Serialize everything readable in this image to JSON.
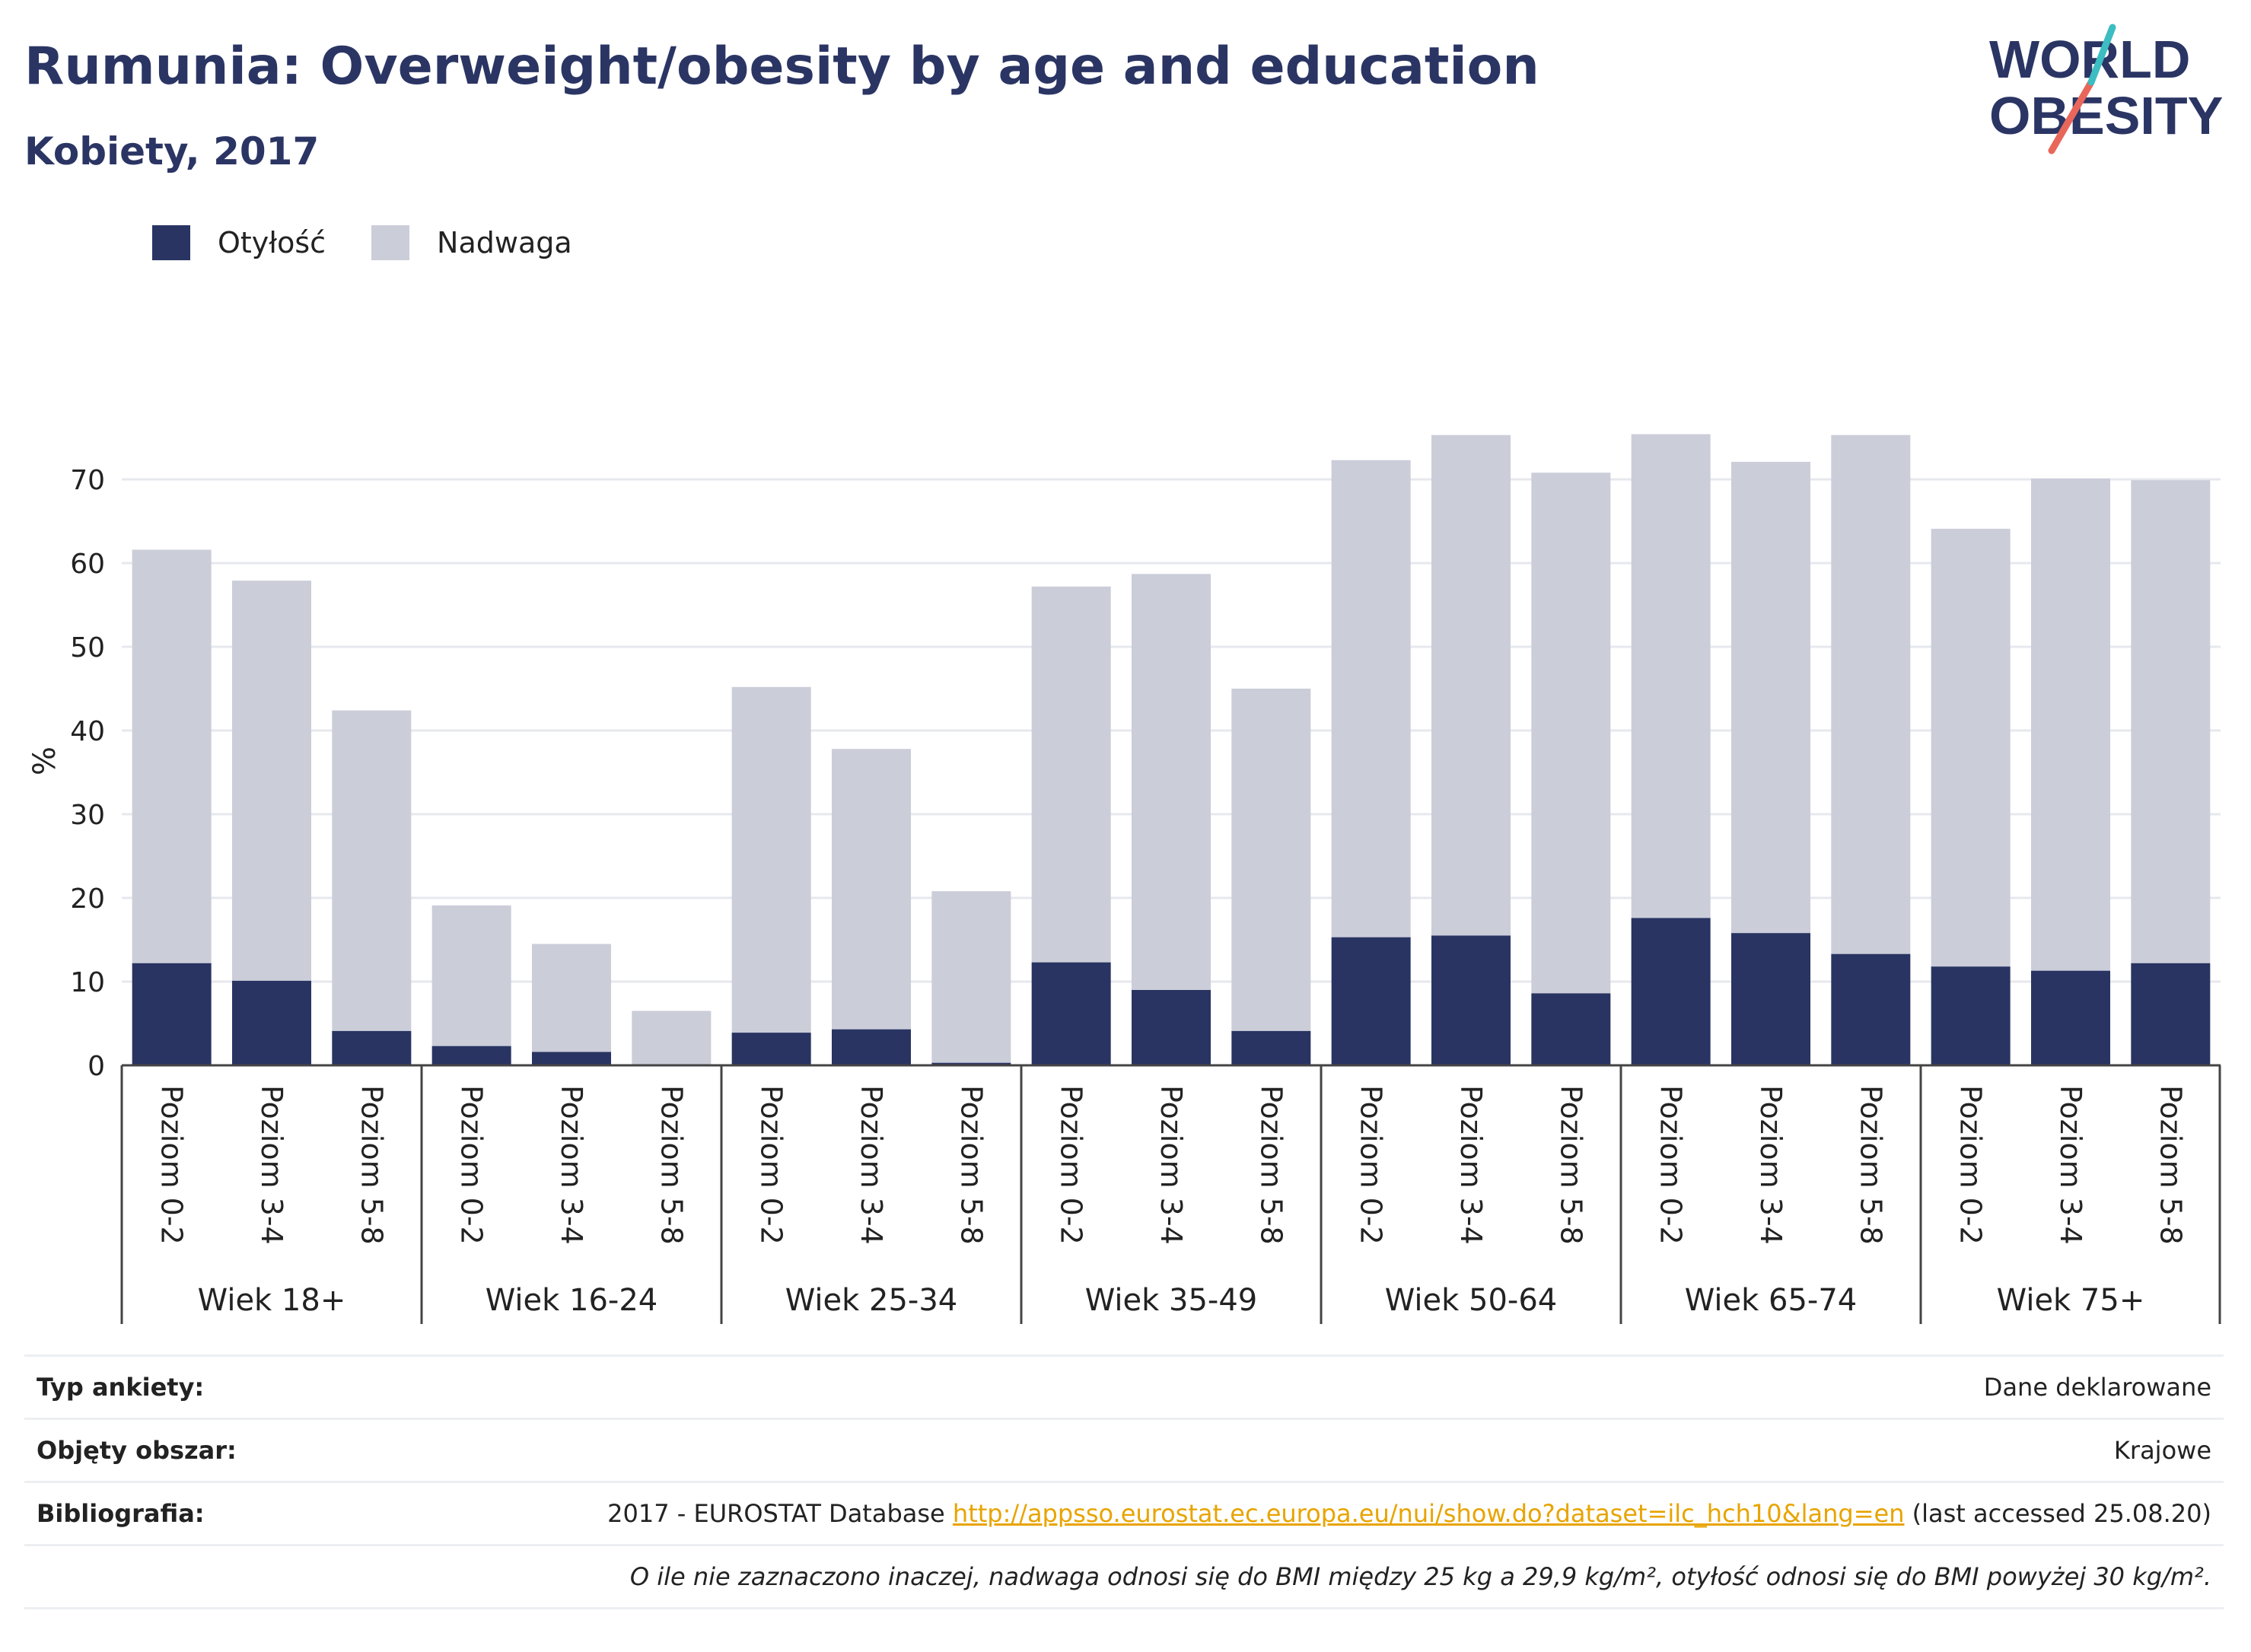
{
  "header": {
    "title": "Rumunia: Overweight/obesity by age and education",
    "subtitle": "Kobiety, 2017"
  },
  "logo": {
    "line1": "WORLD",
    "line2": "OBESITY"
  },
  "legend": {
    "obesity_label": "Otyłość",
    "overweight_label": "Nadwaga"
  },
  "colors": {
    "obesity": "#293462",
    "overweight": "#cbcdd9",
    "grid": "#e6e8ee",
    "link": "#e8a400"
  },
  "chart_data": {
    "type": "bar",
    "stacked": true,
    "ylabel": "%",
    "ylim": [
      0,
      80
    ],
    "yticks": [
      0,
      10,
      20,
      30,
      40,
      50,
      60,
      70
    ],
    "grid": true,
    "legend_position": "top-left",
    "groups": [
      {
        "label": "Wiek 18+",
        "categories": [
          "Poziom 0-2",
          "Poziom 3-4",
          "Poziom 5-8"
        ],
        "obesity": [
          12.2,
          10.1,
          4.1
        ],
        "total": [
          61.6,
          57.9,
          42.4
        ]
      },
      {
        "label": "Wiek 16-24",
        "categories": [
          "Poziom 0-2",
          "Poziom 3-4",
          "Poziom 5-8"
        ],
        "obesity": [
          2.3,
          1.6,
          0.1
        ],
        "total": [
          19.1,
          14.5,
          6.5
        ]
      },
      {
        "label": "Wiek 25-34",
        "categories": [
          "Poziom 0-2",
          "Poziom 3-4",
          "Poziom 5-8"
        ],
        "obesity": [
          3.9,
          4.3,
          0.3
        ],
        "total": [
          45.2,
          37.8,
          20.8
        ]
      },
      {
        "label": "Wiek 35-49",
        "categories": [
          "Poziom 0-2",
          "Poziom 3-4",
          "Poziom 5-8"
        ],
        "obesity": [
          12.3,
          9.0,
          4.1
        ],
        "total": [
          57.2,
          58.7,
          45.0
        ]
      },
      {
        "label": "Wiek 50-64",
        "categories": [
          "Poziom 0-2",
          "Poziom 3-4",
          "Poziom 5-8"
        ],
        "obesity": [
          15.3,
          15.5,
          8.6
        ],
        "total": [
          72.3,
          75.3,
          70.8
        ]
      },
      {
        "label": "Wiek 65-74",
        "categories": [
          "Poziom 0-2",
          "Poziom 3-4",
          "Poziom 5-8"
        ],
        "obesity": [
          17.6,
          15.8,
          13.3
        ],
        "total": [
          75.4,
          72.1,
          75.3
        ]
      },
      {
        "label": "Wiek 75+",
        "categories": [
          "Poziom 0-2",
          "Poziom 3-4",
          "Poziom 5-8"
        ],
        "obesity": [
          11.8,
          11.3,
          12.2
        ],
        "total": [
          64.1,
          70.1,
          69.9
        ]
      }
    ]
  },
  "info": {
    "survey_type_label": "Typ ankiety:",
    "survey_type_value": "Dane deklarowane",
    "area_label": "Objęty obszar:",
    "area_value": "Krajowe",
    "bibliography_label": "Bibliografia:",
    "bibliography_prefix": "2017 - EUROSTAT Database",
    "bibliography_link": "http://appsso.eurostat.ec.europa.eu/nui/show.do?dataset=ilc_hch10&lang=en",
    "bibliography_suffix": "(last accessed 25.08.20)",
    "note": "O ile nie zaznaczono inaczej, nadwaga odnosi się do BMI między 25 kg a 29,9 kg/m², otyłość odnosi się do BMI powyżej 30 kg/m²."
  }
}
